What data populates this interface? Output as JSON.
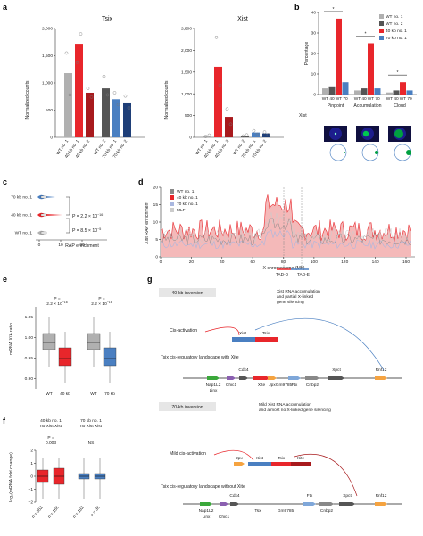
{
  "panels": {
    "a": "a",
    "b": "b",
    "c": "c",
    "d": "d",
    "e": "e",
    "f": "f",
    "g": "g"
  },
  "colors": {
    "wt1": "#b0b0b0",
    "wt2": "#707070",
    "kb40": "#e8262b",
    "kb70": "#4a7fc1",
    "dark": "#555555"
  },
  "panel_a": {
    "charts": [
      {
        "title": "Tsix",
        "ylabel": "Normalized counts",
        "yticks": [
          "0",
          "500",
          "1,000",
          "1,500",
          "2,000"
        ],
        "ymax": 2000,
        "categories": [
          "WT no. 1",
          "40 kb no. 1",
          "40 kb no. 2",
          "WT no. 2",
          "70 kb no. 1",
          "70 kb no. 2"
        ],
        "values": [
          1180,
          1720,
          820,
          900,
          700,
          640
        ],
        "points": [
          [
            1550,
            780
          ],
          [
            1380,
            1900
          ],
          [
            900,
            740
          ],
          [
            1120,
            780
          ],
          [
            820,
            600
          ],
          [
            760,
            540
          ]
        ]
      },
      {
        "title": "Xist",
        "ylabel": "Normalized counts",
        "yticks": [
          "0",
          "500",
          "1,000",
          "1,500",
          "2,000",
          "2,500"
        ],
        "ymax": 2500,
        "categories": [
          "WT no. 1",
          "40 kb no. 1",
          "40 kb no. 2",
          "WT no. 2",
          "70 kb no. 1",
          "70 kb no. 2"
        ],
        "values": [
          30,
          1620,
          470,
          40,
          110,
          90
        ],
        "points": [
          [
            20,
            50
          ],
          [
            2300,
            1200
          ],
          [
            650,
            300
          ],
          [
            30,
            55
          ],
          [
            150,
            70
          ],
          [
            120,
            60
          ]
        ]
      }
    ]
  },
  "panel_b": {
    "ylabel": "Percentage",
    "yticks": [
      "0",
      "10",
      "20",
      "30",
      "40"
    ],
    "ymax": 40,
    "legend": [
      "WT no. 1",
      "WT no. 2",
      "40 kb no. 1",
      "70 kb no. 1"
    ],
    "groups": [
      "Pinpoint",
      "Accumulation",
      "Cloud"
    ],
    "values": [
      [
        3,
        4,
        37,
        6
      ],
      [
        2,
        3,
        25,
        3
      ],
      [
        1,
        2,
        6,
        2
      ]
    ],
    "sublabels": [
      "WT",
      "40",
      "WT",
      "70"
    ],
    "star": "*",
    "xist_label": "Xist"
  },
  "panel_c": {
    "rows": [
      "70 kb no. 1",
      "40 kb no. 1",
      "WT no. 1"
    ],
    "xlabel": "RAP enrichment",
    "xticks": [
      "0",
      "10",
      "20"
    ],
    "p1": "P = 2.2 × 10",
    "p1exp": "−16",
    "p2": "P = 8.5 × 10",
    "p2exp": "−5"
  },
  "panel_d": {
    "ylabel": "Xist RAP enrichment",
    "yticks": [
      "0",
      "5",
      "10",
      "15",
      "20"
    ],
    "xlabel": "X chromosome (Mb)",
    "xticks": [
      "0",
      "20",
      "40",
      "60",
      "80",
      "100",
      "120",
      "140",
      "160"
    ],
    "legend": [
      "WT no. 1",
      "40 kb no. 1",
      "70 kb no. 1",
      "MLF"
    ],
    "tads": [
      "TAD-D",
      "TAD-E"
    ]
  },
  "panel_e": {
    "ylabel": "mRNA X/A ratio",
    "yticks": [
      "0.90",
      "0.95",
      "1.00",
      "1.05"
    ],
    "groups": [
      {
        "p": "P =",
        "pv": "2.2 × 10",
        "pexp": "−16",
        "labels": [
          "WT",
          "40 kb"
        ]
      },
      {
        "p": "P =",
        "pv": "2.2 × 10",
        "pexp": "−16",
        "labels": [
          "WT",
          "70 kb"
        ]
      }
    ]
  },
  "panel_f": {
    "ylabel": "log₂(mRNA fold change)",
    "yticks": [
      "2",
      "1",
      "0",
      "−1",
      "−2"
    ],
    "head1": "40 kb no. 1\nno Xist Xist",
    "head2": "70 kb no. 1\nno Xist Xist",
    "p": "P =",
    "pv": "0.003",
    "ns": "NS",
    "n": [
      "n = 352",
      "n = 166",
      "n = 182",
      "n = 36"
    ]
  },
  "panel_g": {
    "inv40": "40-kb inversion",
    "inv70": "70-kb inversion",
    "text40": "Xist RNA accumulation\nand partial X-linked\ngene silencing",
    "text70": "Mild Xist RNA accumulation\nand almost no X-linked gene silencing",
    "cis40": "Cis-activation",
    "cis70": "Mild cis-activation",
    "land40": "Tsix cis-regulatory landscape with Xite",
    "land70": "Tsix cis-regulatory landscape without Xite",
    "genes40": {
      "Xist": "Xist",
      "Tsix": "Tsix",
      "Cdx4": "Cdx4",
      "Nap1L2": "Nap1L2",
      "Linx": "Linx",
      "Chic1": "Chic1",
      "Xite": "Xite",
      "Jpx": "Jpx",
      "Gm9785": "Gm9785",
      "Cnbp2": "Cnbp2",
      "Ftx": "Ftx",
      "Xpct": "Xpct",
      "Rnf12": "Rnf12"
    },
    "genes70": {
      "Jpx": "Jpx",
      "Xist": "Xist",
      "Tsix": "Tsix",
      "Xite": "Xite",
      "Cdx4": "Cdx4",
      "Nap1L2": "Nap1L2",
      "Linx": "Linx",
      "Chic1": "Chic1",
      "Tsx": "Tsx",
      "Gm9785": "Gm9785",
      "Ftx": "Ftx",
      "Cnbp2": "Cnbp2",
      "Xpct": "Xpct",
      "Rnf12": "Rnf12"
    }
  }
}
